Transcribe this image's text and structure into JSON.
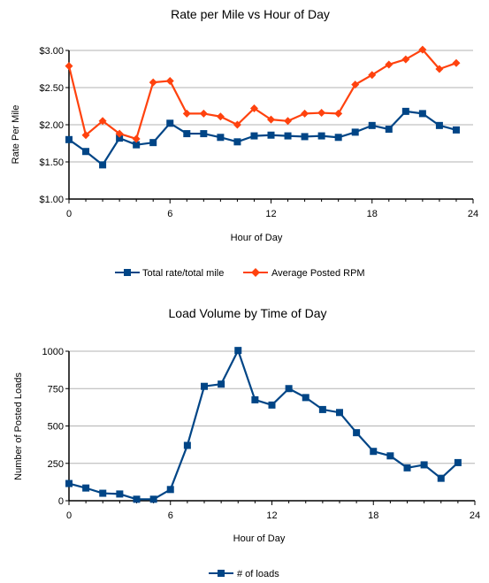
{
  "chart_data": [
    {
      "type": "line",
      "title": "Rate per Mile vs Hour of Day",
      "xlabel": "Hour of Day",
      "ylabel": "Rate Per Mile",
      "xlim": [
        0,
        24
      ],
      "ylim": [
        1.0,
        3.0
      ],
      "x_ticks": [
        "0",
        "6",
        "12",
        "18",
        "24"
      ],
      "y_ticks": [
        "$1.00",
        "$1.50",
        "$2.00",
        "$2.50",
        "$3.00"
      ],
      "grid": "horizontal",
      "legend": "bottom",
      "x": [
        0,
        1,
        2,
        3,
        4,
        5,
        6,
        7,
        8,
        9,
        10,
        11,
        12,
        13,
        14,
        15,
        16,
        17,
        18,
        19,
        20,
        21,
        22,
        23
      ],
      "series": [
        {
          "name": "Total rate/total mile",
          "color": "#004586",
          "marker": "square",
          "values": [
            1.8,
            1.64,
            1.46,
            1.82,
            1.73,
            1.76,
            2.02,
            1.88,
            1.88,
            1.83,
            1.77,
            1.85,
            1.86,
            1.85,
            1.84,
            1.85,
            1.83,
            1.9,
            1.99,
            1.94,
            2.18,
            2.15,
            1.99,
            1.93
          ]
        },
        {
          "name": "Average Posted RPM",
          "color": "#ff420e",
          "marker": "diamond",
          "values": [
            2.79,
            1.86,
            2.05,
            1.88,
            1.81,
            2.57,
            2.59,
            2.15,
            2.15,
            2.11,
            2.0,
            2.22,
            2.07,
            2.05,
            2.15,
            2.16,
            2.15,
            2.54,
            2.67,
            2.81,
            2.88,
            3.01,
            2.75,
            2.83
          ]
        }
      ]
    },
    {
      "type": "line",
      "title": "Load Volume by Time of Day",
      "xlabel": "Hour of Day",
      "ylabel": "Number of Posted Loads",
      "xlim": [
        0,
        24
      ],
      "ylim": [
        0,
        1000
      ],
      "x_ticks": [
        "0",
        "6",
        "12",
        "18",
        "24"
      ],
      "y_ticks": [
        "0",
        "250",
        "500",
        "750",
        "1000"
      ],
      "grid": "horizontal",
      "legend": "bottom",
      "x": [
        0,
        1,
        2,
        3,
        4,
        5,
        6,
        7,
        8,
        9,
        10,
        11,
        12,
        13,
        14,
        15,
        16,
        17,
        18,
        19,
        20,
        21,
        22,
        23
      ],
      "series": [
        {
          "name": "# of loads",
          "color": "#004586",
          "marker": "square",
          "values": [
            115,
            85,
            50,
            45,
            10,
            10,
            75,
            370,
            765,
            780,
            1005,
            675,
            640,
            750,
            690,
            610,
            590,
            455,
            330,
            300,
            220,
            240,
            150,
            255
          ]
        }
      ]
    }
  ]
}
